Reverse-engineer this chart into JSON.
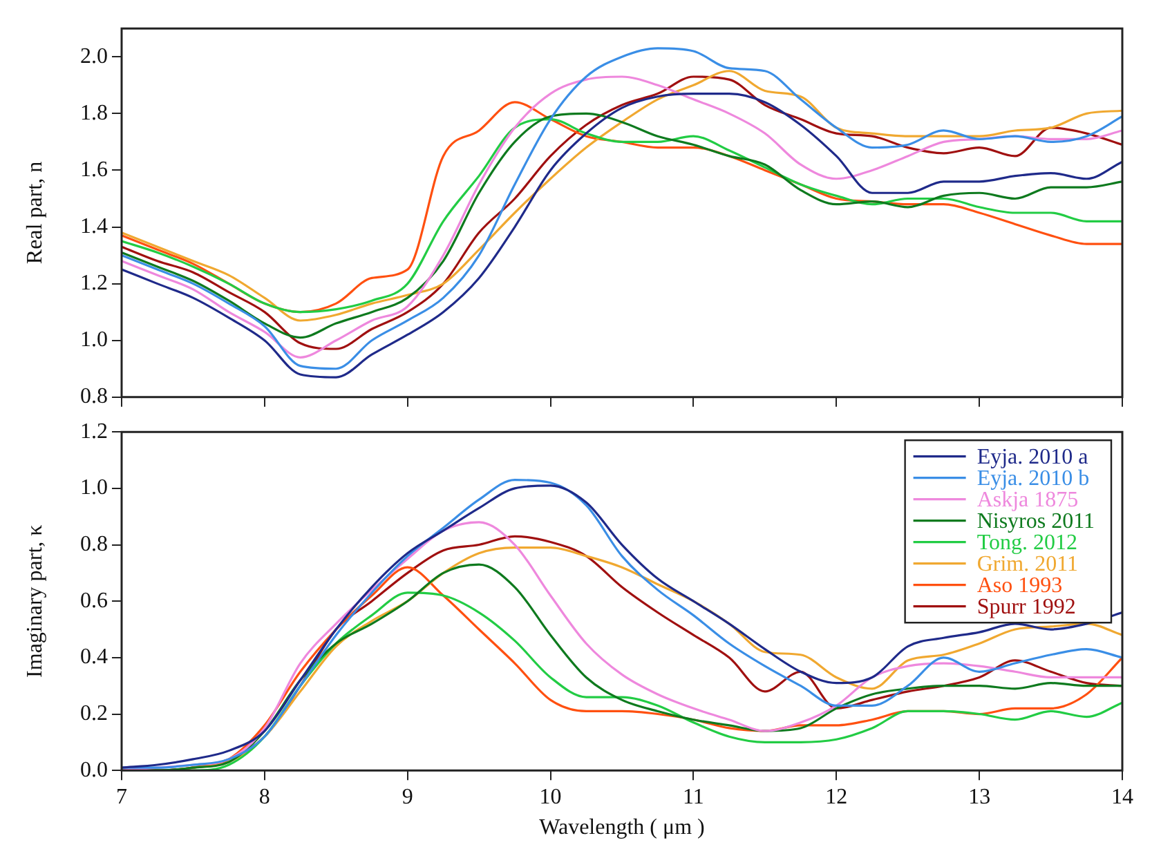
{
  "chart_data": [
    {
      "type": "line",
      "ylabel": "Real part, n",
      "tick_labels": "y",
      "xlim": [
        7,
        14
      ],
      "xticks": [
        7,
        8,
        9,
        10,
        11,
        12,
        13,
        14
      ],
      "ylim": [
        0.8,
        2.1
      ],
      "yticks": [
        0.8,
        {
          "value": 1,
          "label": "1.0"
        },
        1.2,
        1.4,
        1.6,
        1.8,
        {
          "value": 2,
          "label": "2.0"
        }
      ],
      "marker": "none",
      "line_style": "solid",
      "x": [
        7,
        7.25,
        7.5,
        7.75,
        8,
        8.25,
        8.5,
        8.75,
        9,
        9.25,
        9.5,
        9.75,
        10,
        10.25,
        10.5,
        10.75,
        11,
        11.25,
        11.5,
        11.75,
        12,
        12.25,
        12.5,
        12.75,
        13,
        13.25,
        13.5,
        13.75,
        14
      ],
      "series": [
        {
          "color": "#1f2a8a",
          "values": [
            1.25,
            1.2,
            1.15,
            1.08,
            1.0,
            0.88,
            0.87,
            0.95,
            1.02,
            1.1,
            1.22,
            1.4,
            1.6,
            1.73,
            1.82,
            1.86,
            1.87,
            1.87,
            1.84,
            1.76,
            1.65,
            1.52,
            1.52,
            1.56,
            1.56,
            1.58,
            1.59,
            1.57,
            1.63
          ]
        },
        {
          "color": "#3a8ee6",
          "values": [
            1.3,
            1.25,
            1.2,
            1.13,
            1.05,
            0.91,
            0.9,
            1.0,
            1.07,
            1.15,
            1.3,
            1.55,
            1.78,
            1.93,
            2.0,
            2.03,
            2.02,
            1.96,
            1.95,
            1.85,
            1.75,
            1.68,
            1.69,
            1.74,
            1.71,
            1.72,
            1.7,
            1.72,
            1.79
          ]
        },
        {
          "color": "#ee88dd",
          "values": [
            1.28,
            1.23,
            1.18,
            1.1,
            1.03,
            0.94,
            1.0,
            1.07,
            1.12,
            1.3,
            1.55,
            1.75,
            1.87,
            1.92,
            1.93,
            1.9,
            1.85,
            1.8,
            1.73,
            1.62,
            1.57,
            1.6,
            1.65,
            1.7,
            1.71,
            1.72,
            1.71,
            1.71,
            1.74
          ]
        },
        {
          "color": "#0e7a1e",
          "values": [
            1.31,
            1.26,
            1.21,
            1.14,
            1.06,
            1.01,
            1.06,
            1.1,
            1.15,
            1.28,
            1.52,
            1.7,
            1.79,
            1.8,
            1.77,
            1.72,
            1.69,
            1.65,
            1.62,
            1.53,
            1.48,
            1.49,
            1.47,
            1.51,
            1.52,
            1.5,
            1.54,
            1.54,
            1.56
          ]
        },
        {
          "color": "#22cc44",
          "values": [
            1.35,
            1.31,
            1.26,
            1.2,
            1.13,
            1.1,
            1.11,
            1.14,
            1.2,
            1.42,
            1.58,
            1.75,
            1.78,
            1.73,
            1.7,
            1.7,
            1.72,
            1.67,
            1.61,
            1.55,
            1.51,
            1.48,
            1.5,
            1.5,
            1.47,
            1.45,
            1.45,
            1.42,
            1.42
          ]
        },
        {
          "color": "#f0a830",
          "values": [
            1.38,
            1.33,
            1.28,
            1.23,
            1.15,
            1.07,
            1.09,
            1.13,
            1.16,
            1.2,
            1.32,
            1.45,
            1.57,
            1.68,
            1.77,
            1.85,
            1.9,
            1.95,
            1.88,
            1.86,
            1.75,
            1.73,
            1.72,
            1.72,
            1.72,
            1.74,
            1.75,
            1.8,
            1.81
          ]
        },
        {
          "color": "#ff5010",
          "values": [
            1.37,
            1.32,
            1.27,
            1.2,
            1.13,
            1.1,
            1.13,
            1.22,
            1.25,
            1.65,
            1.74,
            1.84,
            1.78,
            1.72,
            1.7,
            1.68,
            1.68,
            1.65,
            1.6,
            1.55,
            1.5,
            1.49,
            1.48,
            1.48,
            1.45,
            1.41,
            1.37,
            1.34,
            1.34
          ]
        },
        {
          "color": "#a01010",
          "values": [
            1.33,
            1.28,
            1.24,
            1.17,
            1.1,
            0.99,
            0.97,
            1.04,
            1.1,
            1.2,
            1.38,
            1.5,
            1.65,
            1.76,
            1.83,
            1.87,
            1.93,
            1.92,
            1.83,
            1.78,
            1.73,
            1.72,
            1.68,
            1.66,
            1.68,
            1.65,
            1.75,
            1.73,
            1.69
          ]
        }
      ]
    },
    {
      "type": "line",
      "ylabel": "Imaginary part, κ",
      "xlabel": "Wavelength ( μm )",
      "xlim": [
        7,
        14
      ],
      "xticks": [
        7,
        8,
        9,
        10,
        11,
        12,
        13,
        14
      ],
      "ylim": [
        0,
        1.2
      ],
      "yticks": [
        {
          "value": 0,
          "label": "0.0"
        },
        0.2,
        0.4,
        0.6,
        0.8,
        {
          "value": 1,
          "label": "1.0"
        },
        1.2
      ],
      "legend": "top right",
      "marker": "none",
      "line_style": "solid",
      "x": [
        7,
        7.25,
        7.5,
        7.75,
        8,
        8.25,
        8.5,
        8.75,
        9,
        9.25,
        9.5,
        9.75,
        10,
        10.25,
        10.5,
        10.75,
        11,
        11.25,
        11.5,
        11.75,
        12,
        12.25,
        12.5,
        12.75,
        13,
        13.25,
        13.5,
        13.75,
        14
      ],
      "series": [
        {
          "name": "Eyja. 2010 a",
          "color": "#1f2a8a",
          "values": [
            0.01,
            0.02,
            0.04,
            0.07,
            0.14,
            0.32,
            0.5,
            0.65,
            0.77,
            0.85,
            0.93,
            1.0,
            1.01,
            0.95,
            0.8,
            0.68,
            0.6,
            0.52,
            0.43,
            0.35,
            0.31,
            0.33,
            0.44,
            0.47,
            0.49,
            0.52,
            0.5,
            0.52,
            0.56
          ]
        },
        {
          "name": "Eyja. 2010 b",
          "color": "#3a8ee6",
          "values": [
            0.01,
            0.01,
            0.02,
            0.04,
            0.12,
            0.3,
            0.48,
            0.63,
            0.76,
            0.86,
            0.96,
            1.03,
            1.02,
            0.94,
            0.76,
            0.64,
            0.55,
            0.45,
            0.37,
            0.3,
            0.23,
            0.23,
            0.3,
            0.4,
            0.35,
            0.38,
            0.41,
            0.43,
            0.4
          ]
        },
        {
          "name": "Askja 1875",
          "color": "#ee88dd",
          "values": [
            0.0,
            0.01,
            0.02,
            0.04,
            0.15,
            0.38,
            0.52,
            0.64,
            0.75,
            0.85,
            0.88,
            0.8,
            0.62,
            0.45,
            0.34,
            0.27,
            0.22,
            0.18,
            0.14,
            0.17,
            0.23,
            0.33,
            0.37,
            0.38,
            0.37,
            0.35,
            0.33,
            0.33,
            0.33
          ]
        },
        {
          "name": "Nisyros 2011",
          "color": "#0e7a1e",
          "values": [
            0.0,
            0.0,
            0.01,
            0.03,
            0.14,
            0.32,
            0.45,
            0.52,
            0.6,
            0.7,
            0.73,
            0.65,
            0.48,
            0.33,
            0.25,
            0.21,
            0.18,
            0.16,
            0.14,
            0.15,
            0.22,
            0.27,
            0.29,
            0.3,
            0.3,
            0.29,
            0.31,
            0.3,
            0.3
          ]
        },
        {
          "name": "Tong. 2012",
          "color": "#22cc44",
          "values": [
            0.0,
            0.0,
            0.0,
            0.02,
            0.12,
            0.3,
            0.45,
            0.55,
            0.63,
            0.62,
            0.56,
            0.46,
            0.33,
            0.26,
            0.26,
            0.23,
            0.17,
            0.12,
            0.1,
            0.1,
            0.11,
            0.15,
            0.21,
            0.21,
            0.2,
            0.18,
            0.21,
            0.19,
            0.24
          ]
        },
        {
          "name": "Grim. 2011",
          "color": "#f0a830",
          "values": [
            null,
            null,
            0.01,
            0.03,
            0.12,
            0.28,
            0.44,
            0.53,
            0.6,
            0.7,
            0.77,
            0.79,
            0.79,
            0.76,
            0.72,
            0.66,
            0.6,
            0.52,
            0.42,
            0.41,
            0.33,
            0.29,
            0.39,
            0.41,
            0.45,
            0.5,
            0.51,
            0.52,
            0.48
          ]
        },
        {
          "name": "Aso 1993",
          "color": "#ff5010",
          "values": [
            0.0,
            0.0,
            0.01,
            0.04,
            0.16,
            0.35,
            0.5,
            0.62,
            0.72,
            0.62,
            0.5,
            0.38,
            0.25,
            0.21,
            0.21,
            0.2,
            0.18,
            0.15,
            0.14,
            0.16,
            0.16,
            0.18,
            0.21,
            0.21,
            0.2,
            0.22,
            0.22,
            0.27,
            0.4
          ]
        },
        {
          "name": "Spurr 1992",
          "color": "#a01010",
          "values": [
            0.0,
            0.0,
            0.01,
            0.04,
            0.12,
            0.3,
            0.5,
            0.6,
            0.7,
            0.78,
            0.8,
            0.83,
            0.81,
            0.76,
            0.65,
            0.56,
            0.48,
            0.4,
            0.28,
            0.35,
            0.22,
            0.25,
            0.28,
            0.3,
            0.33,
            0.39,
            0.35,
            0.31,
            0.3
          ]
        }
      ]
    }
  ]
}
